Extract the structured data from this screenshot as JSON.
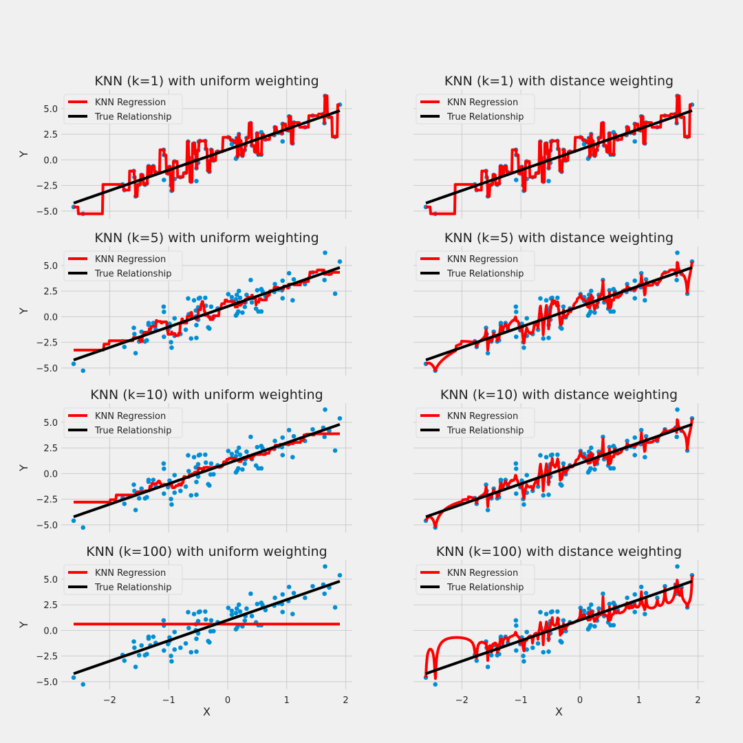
{
  "chart_data": {
    "type": "line",
    "layout": "4x2 grid of subplots",
    "xlabel": "X",
    "ylabel": "Y",
    "xlim": [
      -2.82,
      2.11
    ],
    "ylim": [
      -5.75,
      6.87
    ],
    "xticks": [
      -2,
      -1,
      0,
      1,
      2
    ],
    "xtick_labels": [
      "−2",
      "−1",
      "0",
      "1",
      "2"
    ],
    "yticks": [
      -5,
      -2.5,
      0,
      2.5,
      5
    ],
    "ytick_labels": [
      "−5.0",
      "−2.5",
      "0.0",
      "2.5",
      "5.0"
    ],
    "grid": true,
    "legend": {
      "placement": "top-left",
      "entries": [
        "KNN Regression",
        "True Relationship"
      ]
    },
    "colors": {
      "knn": "#ff0000",
      "true": "#000000",
      "points": "#008fd5",
      "grid": "#cbcbcb",
      "background": "#f0f0f0"
    },
    "true_relationship": {
      "slope": 2,
      "intercept": 1,
      "x_range": [
        -2.61,
        1.9
      ]
    },
    "subplots": [
      {
        "title": "KNN (k=1) with uniform weighting",
        "k": 1,
        "weights": "uniform"
      },
      {
        "title": "KNN (k=1) with distance weighting",
        "k": 1,
        "weights": "distance"
      },
      {
        "title": "KNN (k=5) with uniform weighting",
        "k": 5,
        "weights": "uniform"
      },
      {
        "title": "KNN (k=5) with distance weighting",
        "k": 5,
        "weights": "distance"
      },
      {
        "title": "KNN (k=10) with uniform weighting",
        "k": 10,
        "weights": "uniform"
      },
      {
        "title": "KNN (k=10) with distance weighting",
        "k": 10,
        "weights": "distance"
      },
      {
        "title": "KNN (k=100) with uniform weighting",
        "k": 100,
        "weights": "uniform"
      },
      {
        "title": "KNN (k=100) with distance weighting",
        "k": 100,
        "weights": "distance"
      }
    ],
    "points": [
      [
        -2.61,
        -4.6
      ],
      [
        -2.45,
        -5.27
      ],
      [
        -1.78,
        -2.4
      ],
      [
        -1.75,
        -2.95
      ],
      [
        -1.56,
        -3.56
      ],
      [
        -1.59,
        -1.09
      ],
      [
        -1.58,
        -1.69
      ],
      [
        -1.5,
        -2.42
      ],
      [
        -1.46,
        -1.47
      ],
      [
        -1.4,
        -2.42
      ],
      [
        -1.37,
        -2.31
      ],
      [
        -1.34,
        -0.62
      ],
      [
        -1.34,
        -0.8
      ],
      [
        -1.26,
        -0.62
      ],
      [
        -1.31,
        -1.47
      ],
      [
        -1.22,
        -1.22
      ],
      [
        -1.085,
        0.98
      ],
      [
        -1.08,
        0.47
      ],
      [
        -1.08,
        -1.96
      ],
      [
        -0.985,
        -0.69
      ],
      [
        -1.01,
        -1.33
      ],
      [
        -0.985,
        -1.04
      ],
      [
        -0.96,
        -2.49
      ],
      [
        -0.95,
        -3.02
      ],
      [
        -0.9,
        -0.16
      ],
      [
        -0.9,
        -1.87
      ],
      [
        -0.8,
        -1.69
      ],
      [
        -0.71,
        -1.27
      ],
      [
        -0.67,
        1.78
      ],
      [
        -0.57,
        1.6
      ],
      [
        -0.49,
        1.78
      ],
      [
        -0.47,
        1.84
      ],
      [
        -0.38,
        1.84
      ],
      [
        -0.66,
        0.24
      ],
      [
        -0.54,
        0.6
      ],
      [
        -0.5,
        0.91
      ],
      [
        -0.37,
        1.07
      ],
      [
        -0.28,
        0.98
      ],
      [
        -0.54,
        0.02
      ],
      [
        -0.5,
        -0.29
      ],
      [
        -0.53,
        -0.82
      ],
      [
        -0.62,
        -2.13
      ],
      [
        -0.53,
        -2.07
      ],
      [
        -0.33,
        -1.04
      ],
      [
        -0.31,
        -1.16
      ],
      [
        -0.29,
        -0.09
      ],
      [
        -0.24,
        -0.07
      ],
      [
        -0.17,
        0.8
      ],
      [
        0.01,
        2.2
      ],
      [
        0.07,
        1.91
      ],
      [
        0.07,
        1.53
      ],
      [
        0.14,
        1.69
      ],
      [
        0.155,
        2.13
      ],
      [
        0.19,
        2.51
      ],
      [
        0.21,
        1.84
      ],
      [
        0.32,
        2.13
      ],
      [
        0.3,
        1.4
      ],
      [
        0.29,
        0.96
      ],
      [
        0.41,
        1.4
      ],
      [
        0.39,
        3.58
      ],
      [
        0.18,
        0.51
      ],
      [
        0.25,
        0.4
      ],
      [
        0.14,
        0.11
      ],
      [
        0.16,
        0.29
      ],
      [
        0.48,
        0.78
      ],
      [
        0.52,
        0.51
      ],
      [
        0.57,
        0.51
      ],
      [
        0.5,
        2.58
      ],
      [
        0.57,
        2.69
      ],
      [
        0.59,
        2.47
      ],
      [
        0.64,
        1.98
      ],
      [
        0.79,
        2.42
      ],
      [
        0.8,
        3.18
      ],
      [
        0.86,
        2.64
      ],
      [
        0.92,
        2.58
      ],
      [
        0.93,
        3.51
      ],
      [
        0.93,
        1.8
      ],
      [
        1.03,
        2.87
      ],
      [
        1.04,
        4.24
      ],
      [
        1.12,
        3.64
      ],
      [
        1.1,
        1.6
      ],
      [
        1.31,
        3.18
      ],
      [
        1.44,
        4.31
      ],
      [
        1.62,
        4.47
      ],
      [
        1.65,
        6.24
      ],
      [
        1.64,
        3.58
      ],
      [
        1.72,
        4.18
      ],
      [
        1.82,
        2.24
      ],
      [
        1.9,
        5.38
      ]
    ]
  }
}
